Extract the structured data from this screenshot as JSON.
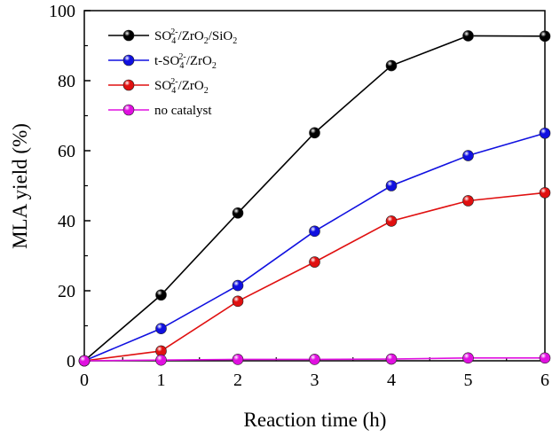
{
  "chart_data": {
    "type": "line",
    "xlabel": "Reaction time (h)",
    "ylabel": "MLA yield (%)",
    "xlim": [
      0,
      6
    ],
    "ylim": [
      0,
      100
    ],
    "x_ticks": [
      0,
      1,
      2,
      3,
      4,
      5,
      6
    ],
    "y_ticks": [
      0,
      20,
      40,
      60,
      80,
      100
    ],
    "grid": false,
    "legend_position": "top-left",
    "x": [
      0,
      1,
      2,
      3,
      4,
      5,
      6
    ],
    "series": [
      {
        "name": "SO42-/ZrO2/SiO2",
        "label_parts": [
          [
            "SO",
            ""
          ],
          [
            "4",
            "sub"
          ],
          [
            "2-",
            "sup"
          ],
          [
            "/ZrO",
            ""
          ],
          [
            "2",
            "sub"
          ],
          [
            "/SiO",
            ""
          ],
          [
            "2",
            "sub"
          ]
        ],
        "color": "#000000",
        "values": [
          0,
          18.8,
          42.2,
          65.1,
          84.3,
          92.8,
          92.7
        ]
      },
      {
        "name": "t-SO42-/ZrO2",
        "label_parts": [
          [
            "t-SO",
            ""
          ],
          [
            "4",
            "sub"
          ],
          [
            "2-",
            "sup"
          ],
          [
            "/ZrO",
            ""
          ],
          [
            "2",
            "sub"
          ]
        ],
        "color": "#1010e0",
        "values": [
          0,
          9.2,
          21.5,
          37.0,
          50.0,
          58.6,
          65.0
        ]
      },
      {
        "name": "SO42-/ZrO2",
        "label_parts": [
          [
            "SO",
            ""
          ],
          [
            "4",
            "sub"
          ],
          [
            "2-",
            "sup"
          ],
          [
            "/ZrO",
            ""
          ],
          [
            "2",
            "sub"
          ]
        ],
        "color": "#e01010",
        "values": [
          0,
          2.8,
          17.0,
          28.2,
          39.9,
          45.7,
          48.0
        ]
      },
      {
        "name": "no catalyst",
        "label_parts": [
          [
            "no catalyst",
            ""
          ]
        ],
        "color": "#e010e0",
        "values": [
          0,
          0.2,
          0.4,
          0.4,
          0.5,
          0.8,
          0.8
        ]
      }
    ]
  }
}
